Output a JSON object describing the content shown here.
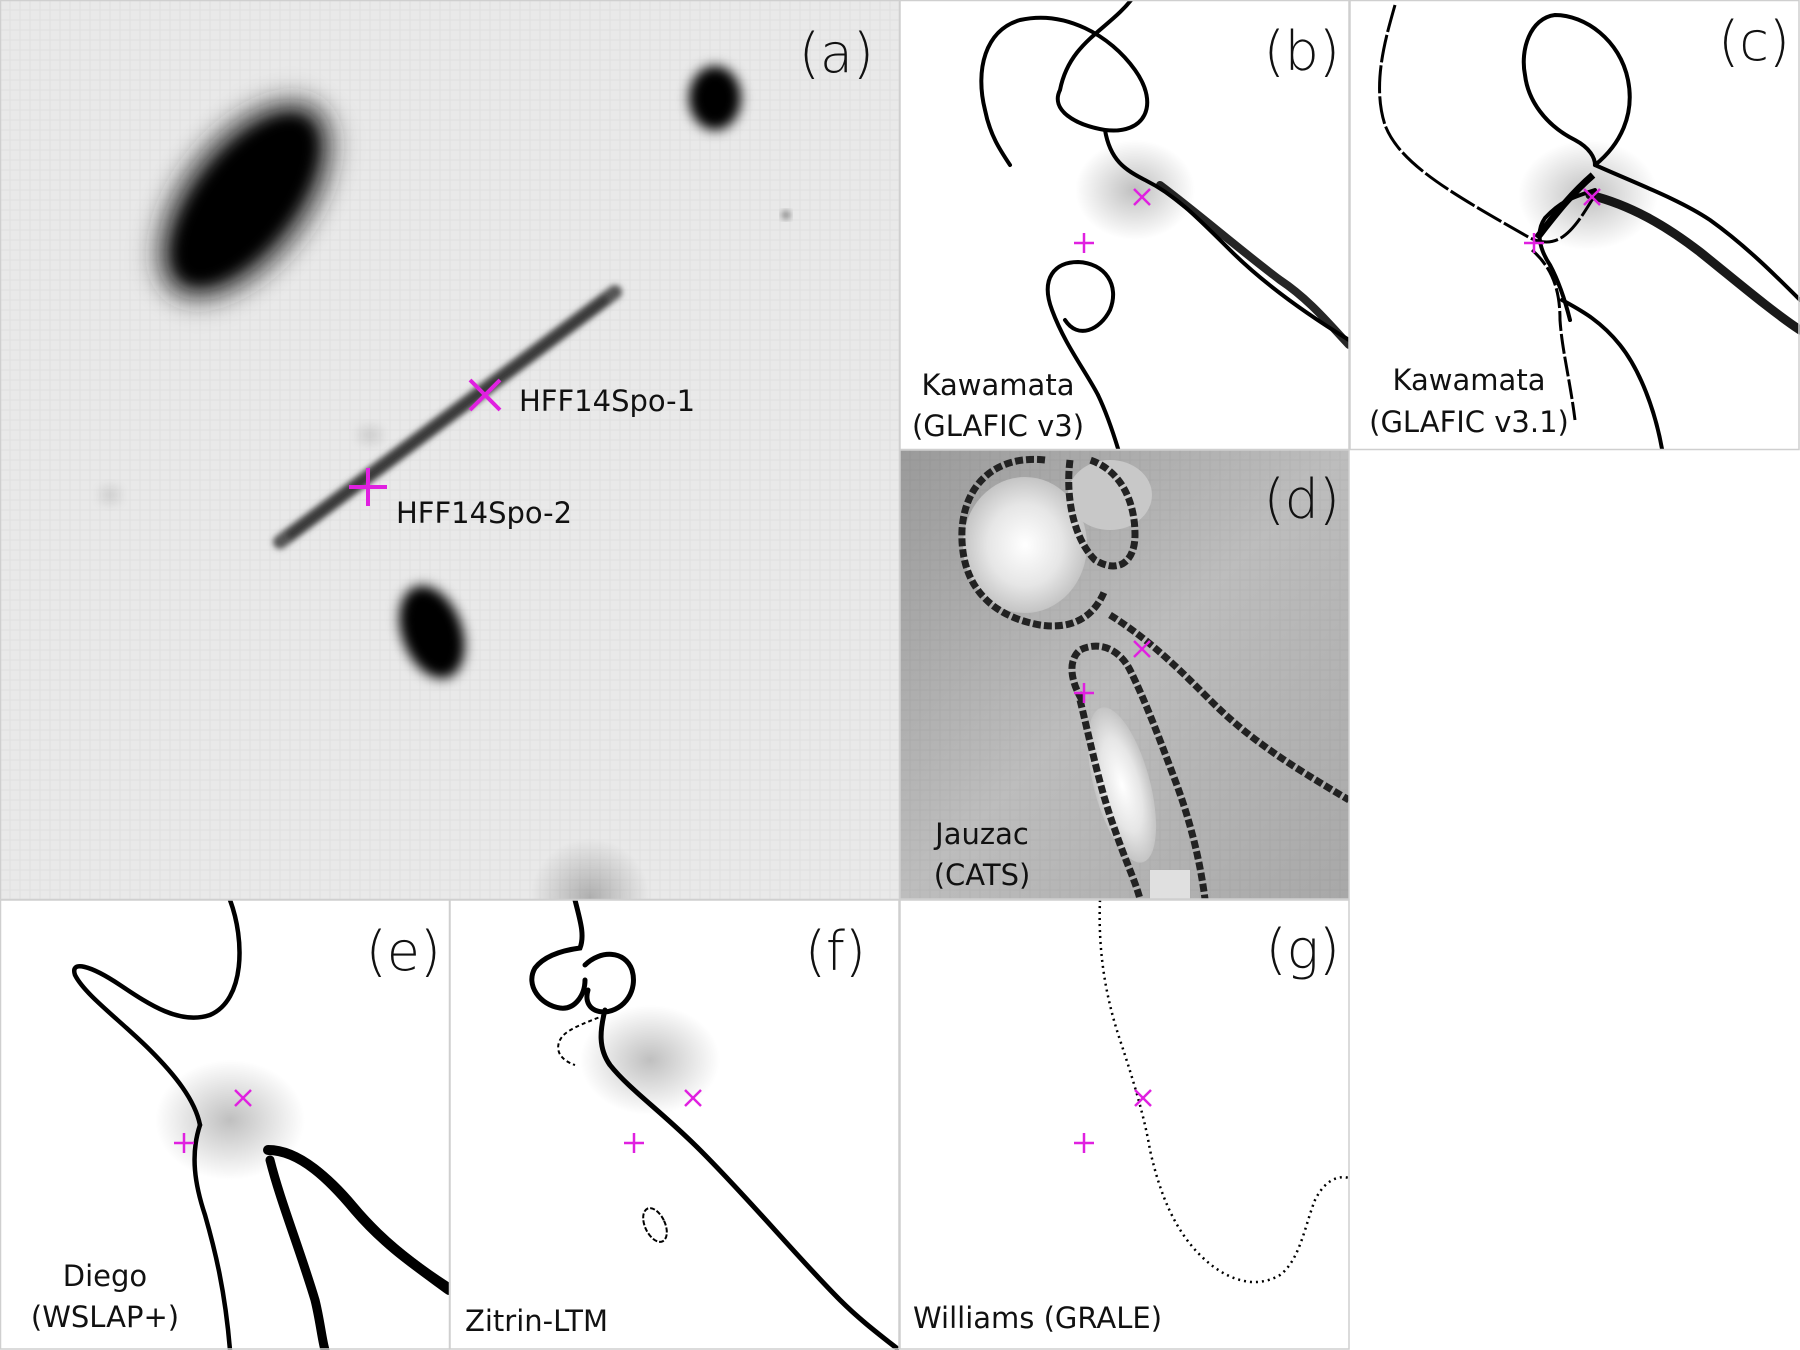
{
  "panels": {
    "a": {
      "letter": "(a)",
      "src1": "HFF14Spo-1",
      "src2": "HFF14Spo-2"
    },
    "b": {
      "letter": "(b)",
      "line1": "Kawamata",
      "line2": "(GLAFIC v3)"
    },
    "c": {
      "letter": "(c)",
      "line1": "Kawamata",
      "line2": "(GLAFIC v3.1)"
    },
    "d": {
      "letter": "(d)",
      "line1": "Jauzac",
      "line2": "(CATS)"
    },
    "e": {
      "letter": "(e)",
      "line1": "Diego",
      "line2": "(WSLAP+)"
    },
    "f": {
      "letter": "(f)",
      "line1": "Zitrin-LTM"
    },
    "g": {
      "letter": "(g)",
      "line1": "Williams (GRALE)"
    }
  },
  "colors": {
    "marker": "#e020e0",
    "curve": "#000000",
    "sky": "#e9e9e9"
  }
}
